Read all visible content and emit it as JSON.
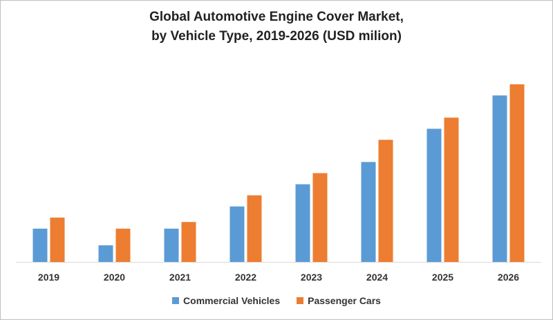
{
  "chart_data": {
    "type": "bar",
    "title": "Global Automotive Engine Cover Market,",
    "subtitle": "by Vehicle Type, 2019-2026 (USD milion)",
    "xlabel": "",
    "ylabel": "",
    "categories": [
      "2019",
      "2020",
      "2021",
      "2022",
      "2023",
      "2024",
      "2025",
      "2026"
    ],
    "series": [
      {
        "name": "Commercial Vehicles",
        "color": "#5b9bd5",
        "values": [
          3,
          1.5,
          3,
          5,
          7,
          9,
          12,
          15
        ]
      },
      {
        "name": "Passenger Cars",
        "color": "#ed7d31",
        "values": [
          4,
          3,
          3.6,
          6,
          8,
          11,
          13,
          16
        ]
      }
    ],
    "ylim": [
      0,
      16
    ],
    "grid": false,
    "legend_position": "bottom"
  }
}
